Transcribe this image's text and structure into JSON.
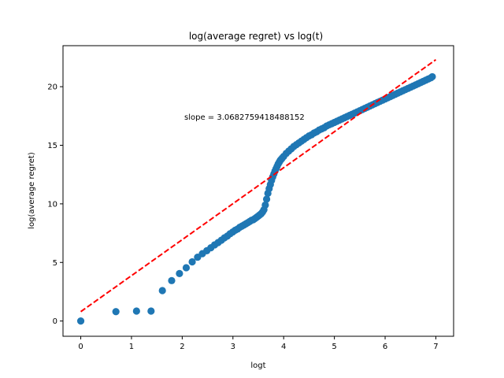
{
  "chart_data": {
    "type": "scatter",
    "title": "log(average regret) vs log(t)",
    "xlabel": "logt",
    "ylabel": "log(average regret)",
    "xlim": [
      -0.35,
      7.35
    ],
    "ylim": [
      -1.3,
      23.5
    ],
    "x_ticks": [
      0,
      1,
      2,
      3,
      4,
      5,
      6,
      7
    ],
    "y_ticks": [
      0,
      5,
      10,
      15,
      20
    ],
    "grid": false,
    "legend": "none",
    "annotation": "slope = 3.0682759418488152",
    "series": [
      {
        "kind": "scatter",
        "color": "#1f77b4",
        "points": [
          [
            0.0,
            0.0
          ],
          [
            0.693,
            0.8
          ],
          [
            1.099,
            0.85
          ],
          [
            1.386,
            0.85
          ],
          [
            1.609,
            2.6
          ],
          [
            1.792,
            3.45
          ],
          [
            1.946,
            4.05
          ],
          [
            2.079,
            4.55
          ],
          [
            2.197,
            5.05
          ],
          [
            2.303,
            5.45
          ],
          [
            2.398,
            5.75
          ],
          [
            2.485,
            6.0
          ],
          [
            2.565,
            6.25
          ],
          [
            2.639,
            6.5
          ],
          [
            2.708,
            6.7
          ],
          [
            2.773,
            6.9
          ],
          [
            2.833,
            7.1
          ],
          [
            2.89,
            7.25
          ],
          [
            2.944,
            7.45
          ],
          [
            2.996,
            7.6
          ],
          [
            3.045,
            7.75
          ],
          [
            3.091,
            7.85
          ],
          [
            3.135,
            8.0
          ],
          [
            3.178,
            8.1
          ],
          [
            3.219,
            8.2
          ],
          [
            3.258,
            8.3
          ],
          [
            3.296,
            8.4
          ],
          [
            3.332,
            8.5
          ],
          [
            3.367,
            8.6
          ],
          [
            3.401,
            8.65
          ],
          [
            3.434,
            8.75
          ],
          [
            3.466,
            8.85
          ],
          [
            3.497,
            8.95
          ],
          [
            3.526,
            9.05
          ],
          [
            3.555,
            9.15
          ],
          [
            3.584,
            9.3
          ],
          [
            3.611,
            9.5
          ],
          [
            3.638,
            9.9
          ],
          [
            3.664,
            10.4
          ],
          [
            3.689,
            10.9
          ],
          [
            3.714,
            11.3
          ],
          [
            3.738,
            11.65
          ],
          [
            3.761,
            12.0
          ],
          [
            3.784,
            12.3
          ],
          [
            3.807,
            12.55
          ],
          [
            3.829,
            12.8
          ],
          [
            3.85,
            13.0
          ],
          [
            3.871,
            13.2
          ],
          [
            3.892,
            13.4
          ],
          [
            3.912,
            13.55
          ],
          [
            3.932,
            13.7
          ],
          [
            3.951,
            13.8
          ],
          [
            3.97,
            13.9
          ],
          [
            4.0,
            14.05
          ],
          [
            4.05,
            14.3
          ],
          [
            4.1,
            14.5
          ],
          [
            4.15,
            14.7
          ],
          [
            4.2,
            14.9
          ],
          [
            4.25,
            15.05
          ],
          [
            4.3,
            15.2
          ],
          [
            4.35,
            15.35
          ],
          [
            4.4,
            15.5
          ],
          [
            4.45,
            15.65
          ],
          [
            4.5,
            15.8
          ],
          [
            4.55,
            15.9
          ],
          [
            4.6,
            16.05
          ],
          [
            4.65,
            16.15
          ],
          [
            4.7,
            16.3
          ],
          [
            4.75,
            16.4
          ],
          [
            4.8,
            16.5
          ],
          [
            4.85,
            16.65
          ],
          [
            4.9,
            16.75
          ],
          [
            4.95,
            16.85
          ],
          [
            5.0,
            16.95
          ],
          [
            5.05,
            17.05
          ],
          [
            5.1,
            17.15
          ],
          [
            5.15,
            17.25
          ],
          [
            5.2,
            17.35
          ],
          [
            5.25,
            17.45
          ],
          [
            5.3,
            17.55
          ],
          [
            5.35,
            17.65
          ],
          [
            5.4,
            17.75
          ],
          [
            5.45,
            17.85
          ],
          [
            5.5,
            17.95
          ],
          [
            5.55,
            18.05
          ],
          [
            5.6,
            18.15
          ],
          [
            5.65,
            18.25
          ],
          [
            5.7,
            18.35
          ],
          [
            5.75,
            18.45
          ],
          [
            5.8,
            18.55
          ],
          [
            5.85,
            18.65
          ],
          [
            5.9,
            18.75
          ],
          [
            5.95,
            18.85
          ],
          [
            6.0,
            18.95
          ],
          [
            6.05,
            19.05
          ],
          [
            6.1,
            19.15
          ],
          [
            6.15,
            19.25
          ],
          [
            6.2,
            19.35
          ],
          [
            6.25,
            19.45
          ],
          [
            6.3,
            19.55
          ],
          [
            6.35,
            19.65
          ],
          [
            6.4,
            19.75
          ],
          [
            6.45,
            19.85
          ],
          [
            6.5,
            19.95
          ],
          [
            6.55,
            20.05
          ],
          [
            6.6,
            20.15
          ],
          [
            6.65,
            20.25
          ],
          [
            6.7,
            20.35
          ],
          [
            6.75,
            20.45
          ],
          [
            6.8,
            20.55
          ],
          [
            6.85,
            20.65
          ],
          [
            6.9,
            20.75
          ],
          [
            6.93,
            20.85
          ]
        ]
      },
      {
        "kind": "line",
        "style": "dashed",
        "color": "#ff0000",
        "points": [
          [
            0.0,
            0.8
          ],
          [
            7.0,
            22.3
          ]
        ]
      }
    ]
  }
}
